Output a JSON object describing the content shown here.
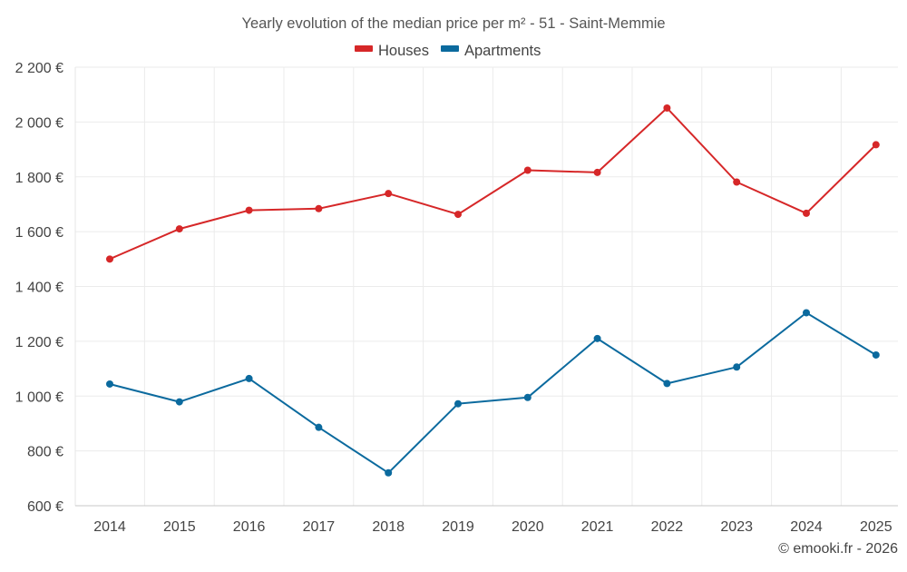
{
  "chart_data": {
    "type": "line",
    "title": "Yearly evolution of the median price per m² - 51 - Saint-Memmie",
    "categories": [
      "2014",
      "2015",
      "2016",
      "2017",
      "2018",
      "2019",
      "2020",
      "2021",
      "2022",
      "2023",
      "2024",
      "2025"
    ],
    "series": [
      {
        "name": "Houses",
        "color": "#d62728",
        "values": [
          1500,
          1610,
          1678,
          1684,
          1739,
          1663,
          1824,
          1816,
          2051,
          1781,
          1667,
          1917
        ]
      },
      {
        "name": "Apartments",
        "color": "#0b6a9e",
        "values": [
          1044,
          979,
          1064,
          886,
          720,
          972,
          995,
          1210,
          1046,
          1106,
          1304,
          1150
        ]
      }
    ],
    "y_ticks": [
      "600 €",
      "800 €",
      "1 000 €",
      "1 200 €",
      "1 400 €",
      "1 600 €",
      "1 800 €",
      "2 000 €",
      "2 200 €"
    ],
    "y_tick_values": [
      600,
      800,
      1000,
      1200,
      1400,
      1600,
      1800,
      2000,
      2200
    ],
    "ylim": [
      600,
      2200
    ],
    "xlabel": "",
    "ylabel": "",
    "grid": true,
    "legend_position": "top-center"
  },
  "credit": "© emooki.fr - 2026"
}
